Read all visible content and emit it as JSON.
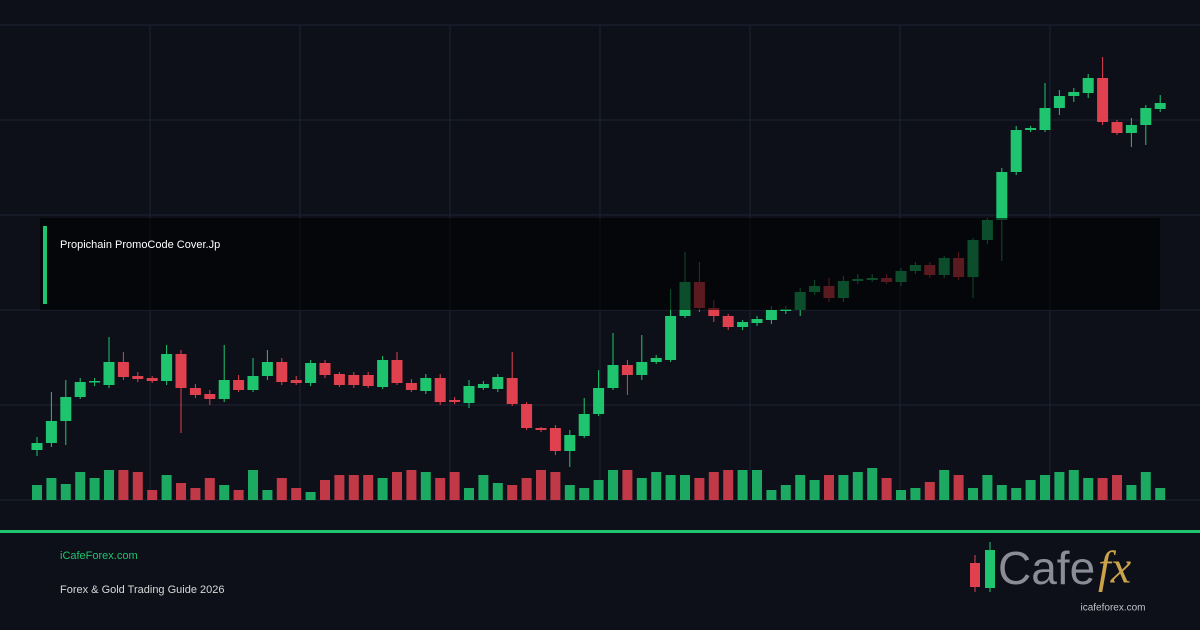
{
  "chart_data": {
    "type": "candlestick",
    "ylim": [
      0,
      475
    ],
    "grid": true,
    "up_color": "#1fc46e",
    "down_color": "#e0414f",
    "open": [
      50,
      57,
      79,
      103,
      118,
      115,
      138,
      124,
      122,
      119,
      146,
      112,
      106,
      101,
      120,
      110,
      124,
      138,
      120,
      117,
      137,
      126,
      125,
      125,
      113,
      140,
      117,
      109,
      122,
      100,
      97,
      112,
      111,
      122,
      96,
      72,
      72,
      49,
      64,
      86,
      112,
      135,
      125,
      138,
      140,
      184,
      218,
      192,
      184,
      173,
      177,
      180,
      189,
      190,
      208,
      214,
      202,
      219,
      220,
      222,
      218,
      229,
      235,
      225,
      242,
      223,
      260,
      280,
      328,
      370,
      370,
      392,
      404,
      407,
      422,
      378,
      367,
      375,
      391
    ],
    "close": [
      57,
      79,
      103,
      118,
      119,
      138,
      123,
      121,
      119,
      146,
      112,
      105,
      101,
      120,
      110,
      124,
      138,
      118,
      117,
      137,
      125,
      115,
      115,
      114,
      140,
      117,
      110,
      122,
      98,
      98,
      114,
      116,
      123,
      96,
      72,
      70,
      49,
      65,
      86,
      112,
      135,
      125,
      138,
      142,
      184,
      218,
      192,
      184,
      173,
      178,
      181,
      190,
      191,
      208,
      214,
      202,
      219,
      221,
      222,
      218,
      229,
      235,
      225,
      242,
      223,
      260,
      280,
      328,
      370,
      372,
      392,
      404,
      408,
      422,
      378,
      367,
      375,
      392,
      397
    ],
    "high": [
      63,
      108,
      120,
      122,
      122,
      163,
      148,
      128,
      124,
      155,
      150,
      116,
      110,
      155,
      125,
      142,
      150,
      142,
      124,
      140,
      140,
      128,
      128,
      128,
      144,
      148,
      121,
      126,
      126,
      103,
      120,
      119,
      126,
      148,
      98,
      73,
      75,
      70,
      102,
      130,
      167,
      140,
      165,
      145,
      211,
      248,
      238,
      200,
      186,
      180,
      184,
      194,
      194,
      212,
      220,
      222,
      224,
      226,
      226,
      226,
      232,
      238,
      238,
      244,
      248,
      262,
      282,
      332,
      374,
      374,
      417,
      410,
      412,
      426,
      443,
      380,
      382,
      395,
      405
    ],
    "low": [
      44,
      53,
      55,
      101,
      114,
      112,
      120,
      118,
      117,
      115,
      67,
      102,
      95,
      98,
      108,
      108,
      120,
      115,
      115,
      114,
      122,
      113,
      112,
      112,
      111,
      115,
      108,
      106,
      95,
      96,
      92,
      110,
      108,
      94,
      70,
      68,
      45,
      33,
      62,
      84,
      110,
      105,
      120,
      136,
      138,
      182,
      188,
      178,
      170,
      170,
      174,
      176,
      186,
      184,
      205,
      198,
      198,
      216,
      218,
      216,
      214,
      226,
      222,
      222,
      220,
      202,
      256,
      239,
      325,
      368,
      368,
      385,
      398,
      402,
      375,
      365,
      353,
      355,
      388
    ],
    "volume": [
      15,
      22,
      16,
      28,
      22,
      30,
      30,
      28,
      10,
      25,
      17,
      12,
      22,
      15,
      10,
      30,
      10,
      22,
      12,
      8,
      20,
      25,
      25,
      25,
      22,
      28,
      30,
      28,
      22,
      28,
      12,
      25,
      17,
      15,
      22,
      30,
      28,
      15,
      12,
      20,
      30,
      30,
      22,
      28,
      25,
      25,
      22,
      28,
      30,
      30,
      30,
      10,
      15,
      25,
      20,
      25,
      25,
      28,
      32,
      22,
      10,
      12,
      18,
      30,
      25,
      12,
      25,
      15,
      12,
      20,
      25,
      28,
      30,
      22,
      22,
      25,
      15,
      28,
      12
    ]
  },
  "overlay": {
    "title": "Propichain PromoCode Cover.Jp"
  },
  "footer": {
    "site": "iCafeForex.com",
    "tagline": "Forex & Gold Trading Guide 2026"
  },
  "logo": {
    "word": "Cafe",
    "accent": "fx",
    "url": "icafeforex.com"
  }
}
